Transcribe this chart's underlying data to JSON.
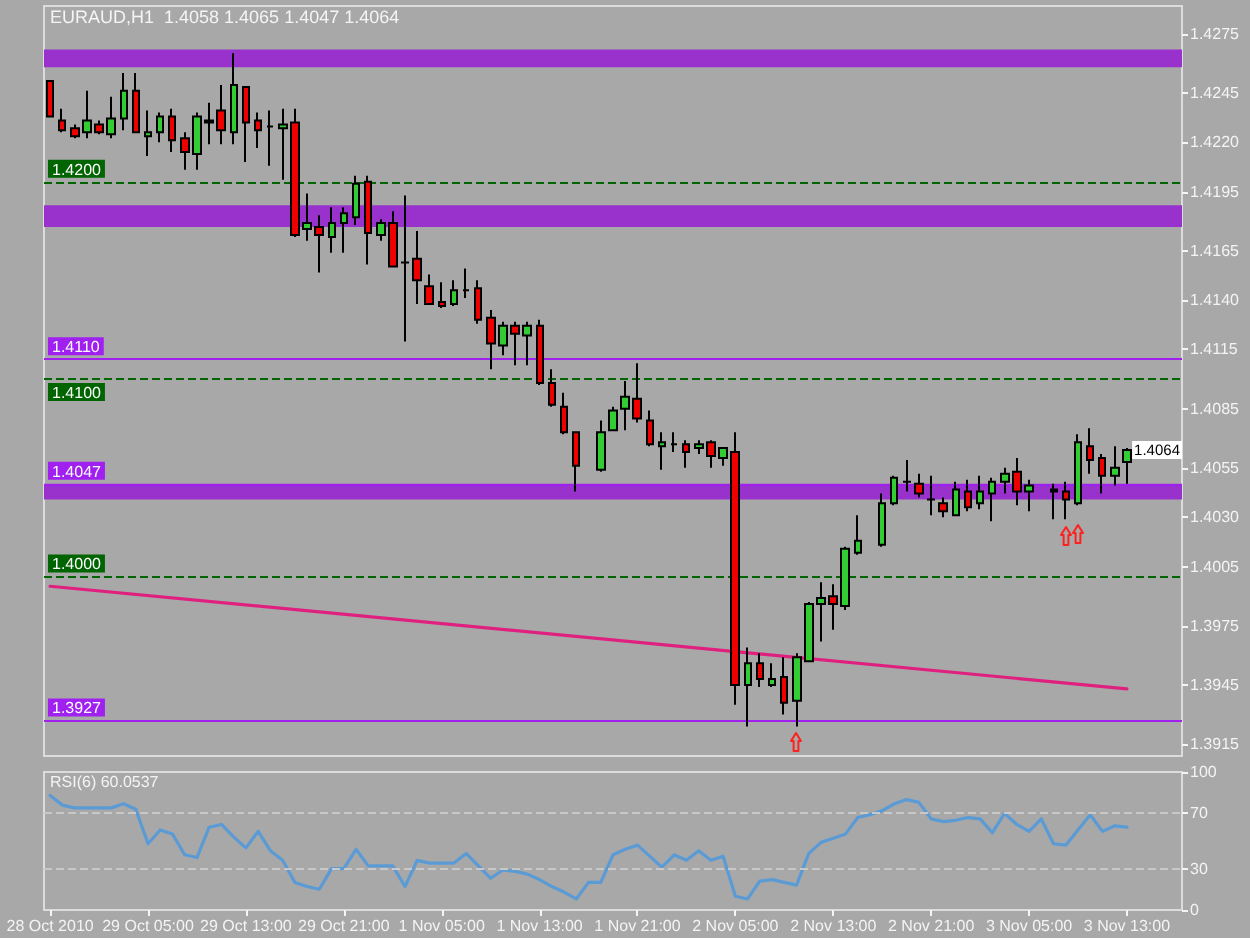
{
  "chart_data": [
    {
      "type": "candlestick",
      "title": "EURAUD,H1  1.4058 1.4065 1.4047 1.4064",
      "categories": [
        "28 Oct 2010",
        null,
        null,
        null,
        null,
        null,
        null,
        null,
        "29 Oct 05:00",
        null,
        null,
        null,
        null,
        null,
        null,
        null,
        "29 Oct 13:00",
        null,
        null,
        null,
        null,
        null,
        null,
        null,
        "29 Oct 21:00",
        null,
        null,
        null,
        null,
        null,
        null,
        null,
        "1 Nov 05:00",
        null,
        null,
        null,
        null,
        null,
        null,
        null,
        "1 Nov 13:00",
        null,
        null,
        null,
        null,
        null,
        null,
        null,
        "1 Nov 21:00",
        null,
        null,
        null,
        null,
        null,
        null,
        null,
        "2 Nov 05:00",
        null,
        null,
        null,
        null,
        null,
        null,
        null,
        "2 Nov 13:00",
        null,
        null,
        null,
        null,
        null,
        null,
        null,
        "2 Nov 21:00",
        null,
        null,
        null,
        null,
        null,
        null,
        null,
        "3 Nov 05:00",
        null,
        null,
        null,
        null,
        null,
        null,
        null,
        "3 Nov 13:00",
        null,
        null,
        null,
        null
      ],
      "ohlc": [
        [
          1.4251,
          1.4251,
          1.4233,
          1.4233
        ],
        [
          1.4231,
          1.4237,
          1.4225,
          1.4226
        ],
        [
          1.4227,
          1.4229,
          1.4222,
          1.4223
        ],
        [
          1.4225,
          1.4246,
          1.4222,
          1.4231
        ],
        [
          1.4229,
          1.4231,
          1.4224,
          1.4225
        ],
        [
          1.4224,
          1.4243,
          1.4222,
          1.4232
        ],
        [
          1.4232,
          1.4255,
          1.4226,
          1.4246
        ],
        [
          1.4246,
          1.4255,
          1.4225,
          1.4225
        ],
        [
          1.4223,
          1.4236,
          1.4213,
          1.4225
        ],
        [
          1.4225,
          1.4235,
          1.422,
          1.4233
        ],
        [
          1.4233,
          1.4237,
          1.4215,
          1.4221
        ],
        [
          1.4222,
          1.4225,
          1.4206,
          1.4215
        ],
        [
          1.4214,
          1.4235,
          1.4206,
          1.4233
        ],
        [
          1.423,
          1.424,
          1.4219,
          1.4231
        ],
        [
          1.4236,
          1.4249,
          1.4219,
          1.4226
        ],
        [
          1.4225,
          1.4265,
          1.4219,
          1.4249
        ],
        [
          1.4248,
          1.4248,
          1.421,
          1.423
        ],
        [
          1.4231,
          1.4235,
          1.4217,
          1.4226
        ],
        [
          1.4228,
          1.4236,
          1.4208,
          1.4228
        ],
        [
          1.4227,
          1.4237,
          1.4201,
          1.4229
        ],
        [
          1.423,
          1.4237,
          1.4172,
          1.4173
        ],
        [
          1.4176,
          1.4194,
          1.417,
          1.4179
        ],
        [
          1.4177,
          1.4183,
          1.4154,
          1.4173
        ],
        [
          1.4172,
          1.4187,
          1.4164,
          1.4179
        ],
        [
          1.4179,
          1.4187,
          1.4164,
          1.4184
        ],
        [
          1.4182,
          1.4203,
          1.4178,
          1.4199
        ],
        [
          1.42,
          1.4203,
          1.4158,
          1.4174
        ],
        [
          1.4173,
          1.4181,
          1.417,
          1.4179
        ],
        [
          1.4179,
          1.4185,
          1.4157,
          1.4157
        ],
        [
          1.4159,
          1.4193,
          1.4119,
          1.4159
        ],
        [
          1.4161,
          1.4175,
          1.4138,
          1.415
        ],
        [
          1.4147,
          1.4153,
          1.4138,
          1.4138
        ],
        [
          1.4139,
          1.4149,
          1.4136,
          1.4137
        ],
        [
          1.4138,
          1.415,
          1.4137,
          1.4145
        ],
        [
          1.4145,
          1.4156,
          1.4141,
          1.4145
        ],
        [
          1.4146,
          1.415,
          1.4128,
          1.413
        ],
        [
          1.4131,
          1.4135,
          1.4105,
          1.4118
        ],
        [
          1.4117,
          1.4129,
          1.4112,
          1.4127
        ],
        [
          1.4127,
          1.4129,
          1.4107,
          1.4123
        ],
        [
          1.4122,
          1.4129,
          1.4107,
          1.4127
        ],
        [
          1.4127,
          1.413,
          1.4097,
          1.4098
        ],
        [
          1.4098,
          1.4105,
          1.4086,
          1.4087
        ],
        [
          1.4086,
          1.4093,
          1.4072,
          1.4073
        ],
        [
          1.4073,
          1.4073,
          1.4043,
          1.4056
        ],
        null,
        [
          1.4054,
          1.4079,
          1.4053,
          1.4073
        ],
        [
          1.4074,
          1.4086,
          1.4074,
          1.4084
        ],
        [
          1.4085,
          1.4099,
          1.4074,
          1.4091
        ],
        [
          1.409,
          1.4108,
          1.4078,
          1.408
        ],
        [
          1.4079,
          1.4084,
          1.4066,
          1.4067
        ],
        [
          1.4066,
          1.4073,
          1.4054,
          1.4068
        ],
        [
          1.4067,
          1.4073,
          1.4063,
          1.4067
        ],
        [
          1.4067,
          1.4069,
          1.4055,
          1.4063
        ],
        [
          1.4065,
          1.4069,
          1.4062,
          1.4067
        ],
        [
          1.4068,
          1.4069,
          1.4055,
          1.4061
        ],
        [
          1.406,
          1.4065,
          1.4056,
          1.4065
        ],
        [
          1.4063,
          1.4073,
          1.3935,
          1.3945
        ],
        [
          1.3945,
          1.3964,
          1.3924,
          1.3956
        ],
        [
          1.3956,
          1.3961,
          1.3944,
          1.3948
        ],
        [
          1.3945,
          1.3956,
          1.3944,
          1.3948
        ],
        [
          1.3949,
          1.3959,
          1.393,
          1.3936
        ],
        [
          1.3937,
          1.3961,
          1.3924,
          1.3959
        ],
        [
          1.3957,
          1.3987,
          1.3957,
          1.3986
        ],
        [
          1.3986,
          1.3997,
          1.3967,
          1.3989
        ],
        [
          1.399,
          1.3996,
          1.3973,
          1.3986
        ],
        [
          1.3985,
          1.4015,
          1.3983,
          1.4014
        ],
        [
          1.4012,
          1.4031,
          1.4011,
          1.4018
        ],
        null,
        [
          1.4016,
          1.4042,
          1.4015,
          1.4037
        ],
        [
          1.4037,
          1.4051,
          1.4036,
          1.405
        ],
        [
          1.4048,
          1.4059,
          1.4043,
          1.4048
        ],
        [
          1.4047,
          1.4052,
          1.404,
          1.4042
        ],
        [
          1.4039,
          1.4051,
          1.4031,
          1.4039
        ],
        [
          1.4037,
          1.404,
          1.403,
          1.4033
        ],
        [
          1.4031,
          1.4048,
          1.4031,
          1.4044
        ],
        [
          1.4043,
          1.4049,
          1.4033,
          1.4035
        ],
        [
          1.4037,
          1.4051,
          1.4034,
          1.4043
        ],
        [
          1.4042,
          1.405,
          1.4028,
          1.4048
        ],
        [
          1.4048,
          1.4055,
          1.4042,
          1.4052
        ],
        [
          1.4053,
          1.406,
          1.4036,
          1.4043
        ],
        [
          1.4043,
          1.4049,
          1.4033,
          1.4046
        ],
        null,
        [
          1.4044,
          1.4047,
          1.4029,
          1.4043
        ],
        [
          1.4043,
          1.4048,
          1.4029,
          1.4039
        ],
        [
          1.4037,
          1.4072,
          1.4036,
          1.4068
        ],
        [
          1.4066,
          1.4075,
          1.4052,
          1.4059
        ],
        [
          1.406,
          1.4062,
          1.4042,
          1.4051
        ],
        [
          1.4051,
          1.4066,
          1.4046,
          1.4055
        ],
        [
          1.4058,
          1.4065,
          1.4047,
          1.4064
        ],
        null,
        null,
        null,
        null
      ],
      "colors": [
        "#ee0000",
        "#ee0000",
        "#ee0000",
        "#32cd32",
        "#ee0000",
        "#32cd32",
        "#32cd32",
        "#ee0000",
        "#32cd32",
        "#32cd32",
        "#ee0000",
        "#ee0000",
        "#32cd32",
        "#32cd32",
        "#ee0000",
        "#32cd32",
        "#ee0000",
        "#ee0000",
        "#000000",
        "#32cd32",
        "#ee0000",
        "#32cd32",
        "#ee0000",
        "#32cd32",
        "#32cd32",
        "#32cd32",
        "#ee0000",
        "#32cd32",
        "#ee0000",
        "#000000",
        "#ee0000",
        "#ee0000",
        "#ee0000",
        "#32cd32",
        "#000000",
        "#ee0000",
        "#ee0000",
        "#32cd32",
        "#ee0000",
        "#32cd32",
        "#ee0000",
        "#ee0000",
        "#ee0000",
        "#ee0000",
        null,
        "#32cd32",
        "#32cd32",
        "#32cd32",
        "#ee0000",
        "#ee0000",
        "#32cd32",
        "#000000",
        "#ee0000",
        "#32cd32",
        "#ee0000",
        "#32cd32",
        "#ee0000",
        "#32cd32",
        "#ee0000",
        "#32cd32",
        "#ee0000",
        "#32cd32",
        "#32cd32",
        "#32cd32",
        "#ee0000",
        "#32cd32",
        "#32cd32",
        null,
        "#32cd32",
        "#32cd32",
        "#000000",
        "#ee0000",
        "#000000",
        "#ee0000",
        "#32cd32",
        "#ee0000",
        "#32cd32",
        "#32cd32",
        "#32cd32",
        "#ee0000",
        "#32cd32",
        null,
        "#ee0000",
        "#ee0000",
        "#32cd32",
        "#ee0000",
        "#ee0000",
        "#32cd32",
        "#32cd32",
        null,
        null,
        null,
        null
      ],
      "series": [
        {
          "type": "line",
          "color": "#e0207f",
          "x": [
            "28 Oct 2010",
            "3 Nov 13:00"
          ],
          "values": [
            1.3995,
            1.3943
          ]
        }
      ],
      "marker": "none",
      "ylim": [
        1.3909,
        1.4289
      ],
      "yticks": [
        1.3915,
        1.3945,
        1.3975,
        1.4005,
        {
          "value": 1.403,
          "label": "1.4030"
        },
        1.4055,
        1.4085,
        1.4115,
        {
          "value": 1.414,
          "label": "1.4140"
        },
        1.4165,
        1.4195,
        {
          "value": 1.422,
          "label": "1.4220"
        },
        1.4245,
        1.4275
      ],
      "tick_labels": "y",
      "bands": [
        {
          "axis": "y",
          "from": 1.4258,
          "to": 1.4267,
          "color": "#9932cc"
        },
        {
          "axis": "y",
          "from": 1.4177,
          "to": 1.4188,
          "color": "#9932cc"
        },
        {
          "axis": "y",
          "from": 1.4039,
          "to": 1.4047,
          "color": "#9932cc"
        }
      ],
      "ref_lines": [
        {
          "axis": "y",
          "value": 1.42,
          "label": "1.4200",
          "color": "#006400",
          "line_style": "dashed"
        },
        {
          "axis": "y",
          "value": 1.411,
          "label": "1.4110",
          "color": "#a020f0",
          "line_style": "solid"
        },
        {
          "axis": "y",
          "value": 1.41,
          "label": "1.4100",
          "color": "#006400",
          "line_style": "dashed"
        },
        {
          "axis": "y",
          "value": 1.4047,
          "label": "1.4047",
          "color": "#a020f0",
          "line_style": "solid"
        },
        {
          "axis": "y",
          "value": 1.4,
          "label": "1.4000",
          "color": "#006400",
          "line_style": "dashed"
        },
        {
          "axis": "y",
          "value": 1.3927,
          "label": "1.3927",
          "color": "#a020f0",
          "line_style": "solid"
        }
      ],
      "annotations": [
        {
          "text": "1.4064",
          "y": 1.4064
        }
      ]
    },
    {
      "type": "line",
      "title": "RSI(6) 60.0537",
      "categories": [
        "28 Oct 2010",
        null,
        null,
        null,
        null,
        null,
        null,
        null,
        "29 Oct 05:00",
        null,
        null,
        null,
        null,
        null,
        null,
        null,
        "29 Oct 13:00",
        null,
        null,
        null,
        null,
        null,
        null,
        null,
        "29 Oct 21:00",
        null,
        null,
        null,
        null,
        null,
        null,
        null,
        "1 Nov 05:00",
        null,
        null,
        null,
        null,
        null,
        null,
        null,
        "1 Nov 13:00",
        null,
        null,
        null,
        null,
        null,
        null,
        null,
        "1 Nov 21:00",
        null,
        null,
        null,
        null,
        null,
        null,
        null,
        "2 Nov 05:00",
        null,
        null,
        null,
        null,
        null,
        null,
        null,
        "2 Nov 13:00",
        null,
        null,
        null,
        null,
        null,
        null,
        null,
        "2 Nov 21:00",
        null,
        null,
        null,
        null,
        null,
        null,
        null,
        "3 Nov 05:00",
        null,
        null,
        null,
        null,
        null,
        null,
        null,
        "3 Nov 13:00",
        null,
        null,
        null,
        null
      ],
      "values": [
        83,
        76,
        74,
        74,
        74,
        74,
        77,
        73,
        48,
        58,
        55,
        40,
        38,
        60,
        62,
        53,
        45,
        57,
        43,
        36,
        20,
        17,
        15,
        30,
        30,
        44,
        32,
        32,
        32,
        17,
        36,
        34,
        34,
        34,
        41,
        32,
        23,
        29,
        28,
        26,
        22,
        17,
        13,
        8,
        20,
        20,
        40,
        44,
        47,
        39,
        31,
        40,
        36,
        43,
        36,
        39,
        10,
        8,
        21,
        22,
        20,
        18,
        41,
        49,
        52,
        55,
        67,
        69,
        72,
        77,
        80,
        78,
        66,
        64,
        65,
        67,
        66,
        56,
        70,
        62,
        57,
        66,
        48,
        47,
        58,
        69,
        57,
        61,
        60,
        null,
        null,
        null,
        null
      ],
      "color": "#5b9bd5",
      "marker": "none",
      "ylim": [
        0,
        100
      ],
      "yticks": [
        0,
        30,
        70,
        100
      ],
      "ref_lines": [
        {
          "axis": "y",
          "value": 70,
          "color": "#c8c8c8",
          "line_style": "dashed"
        },
        {
          "axis": "y",
          "value": 30,
          "color": "#c8c8c8",
          "line_style": "dashed"
        }
      ]
    }
  ]
}
